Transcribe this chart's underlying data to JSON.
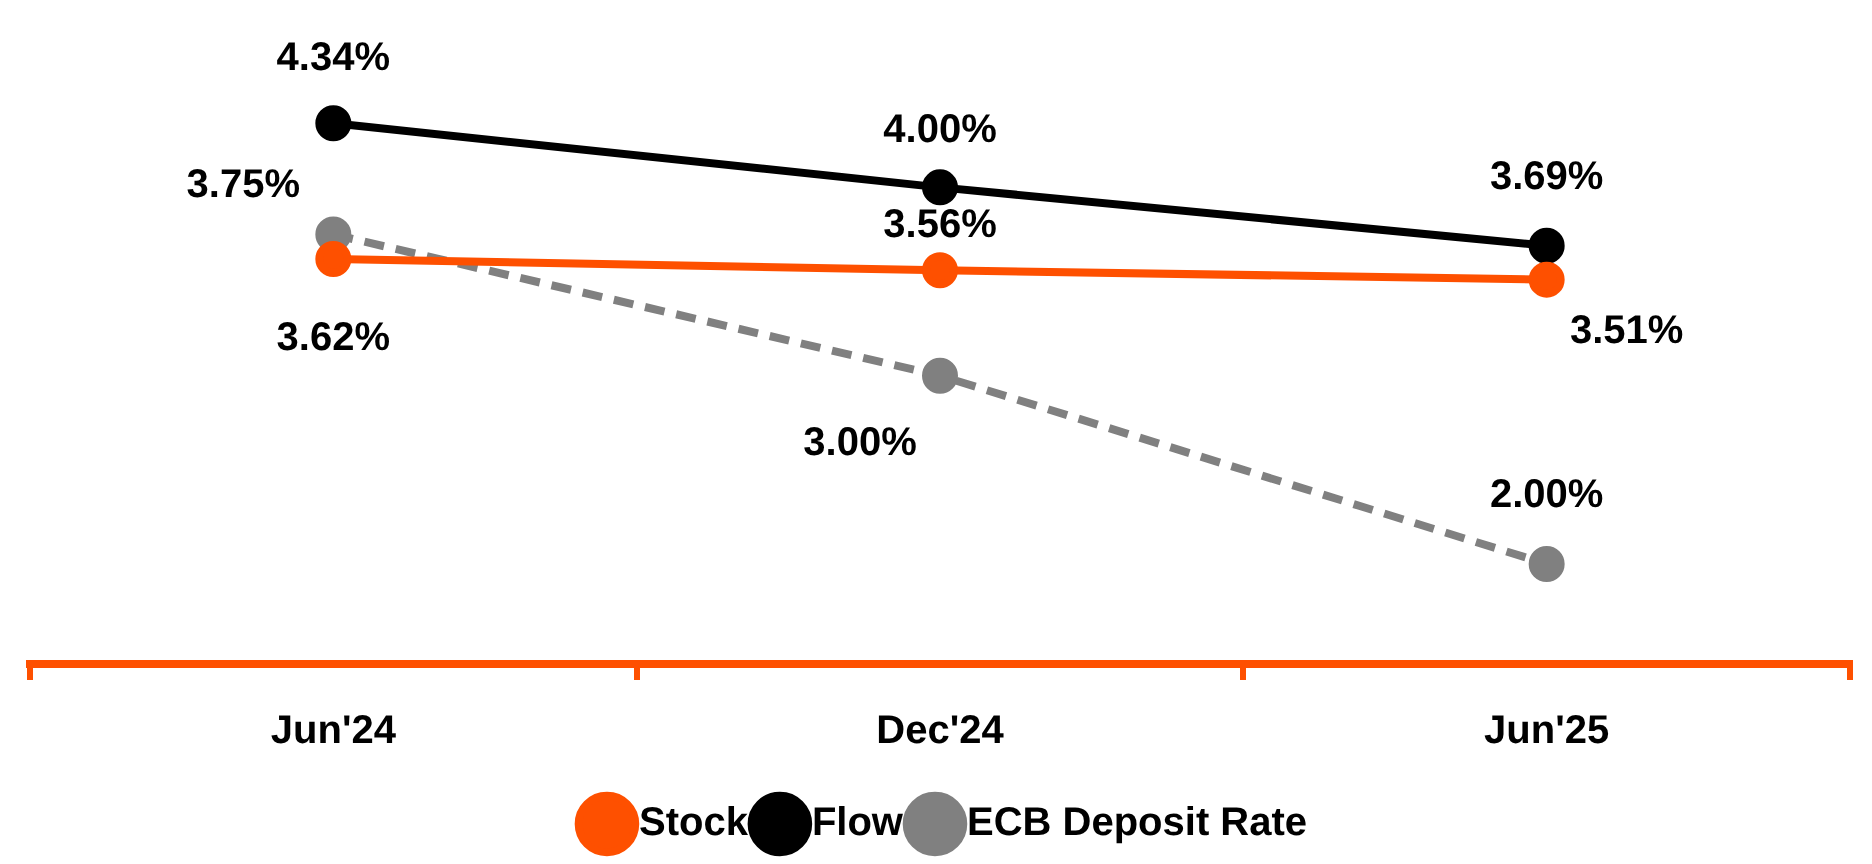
{
  "chart_data": {
    "type": "line",
    "categories": [
      "Jun'24",
      "Dec'24",
      "Jun'25"
    ],
    "marker": "circle",
    "legend": "bottom",
    "series": [
      {
        "name": "Stock",
        "color": "#fe5000",
        "values": [
          3.62,
          3.56,
          3.51
        ],
        "value_labels": [
          "3.62%",
          "3.56%",
          "3.51%"
        ],
        "line_style": "solid"
      },
      {
        "name": "Flow",
        "color": "#000000",
        "values": [
          4.34,
          4.0,
          3.69
        ],
        "value_labels": [
          "4.34%",
          "4.00%",
          "3.69%"
        ],
        "line_style": "solid"
      },
      {
        "name": "ECB Deposit Rate",
        "color": "#808080",
        "values": [
          3.75,
          3.0,
          2.0
        ],
        "value_labels": [
          "3.75%",
          "3.00%",
          "2.00%"
        ],
        "line_style": "dashed"
      }
    ]
  }
}
